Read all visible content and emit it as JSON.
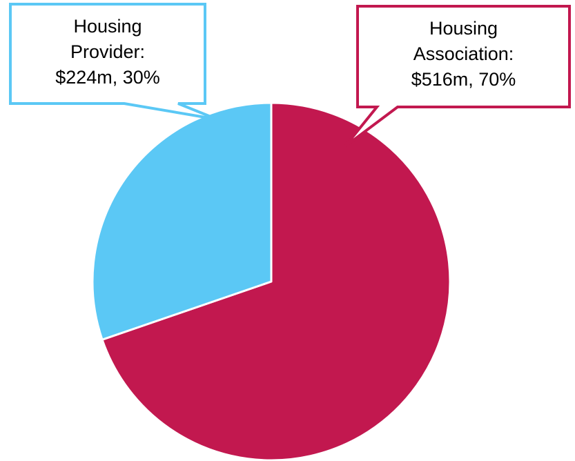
{
  "chart_data": {
    "type": "pie",
    "categories": [
      "Housing Provider:",
      "Housing Association:"
    ],
    "values": [
      224,
      516
    ],
    "value_labels": [
      "$224m, 30%",
      "$516m, 70%"
    ],
    "colors": [
      "#5bc8f5",
      "#c2184f"
    ]
  }
}
